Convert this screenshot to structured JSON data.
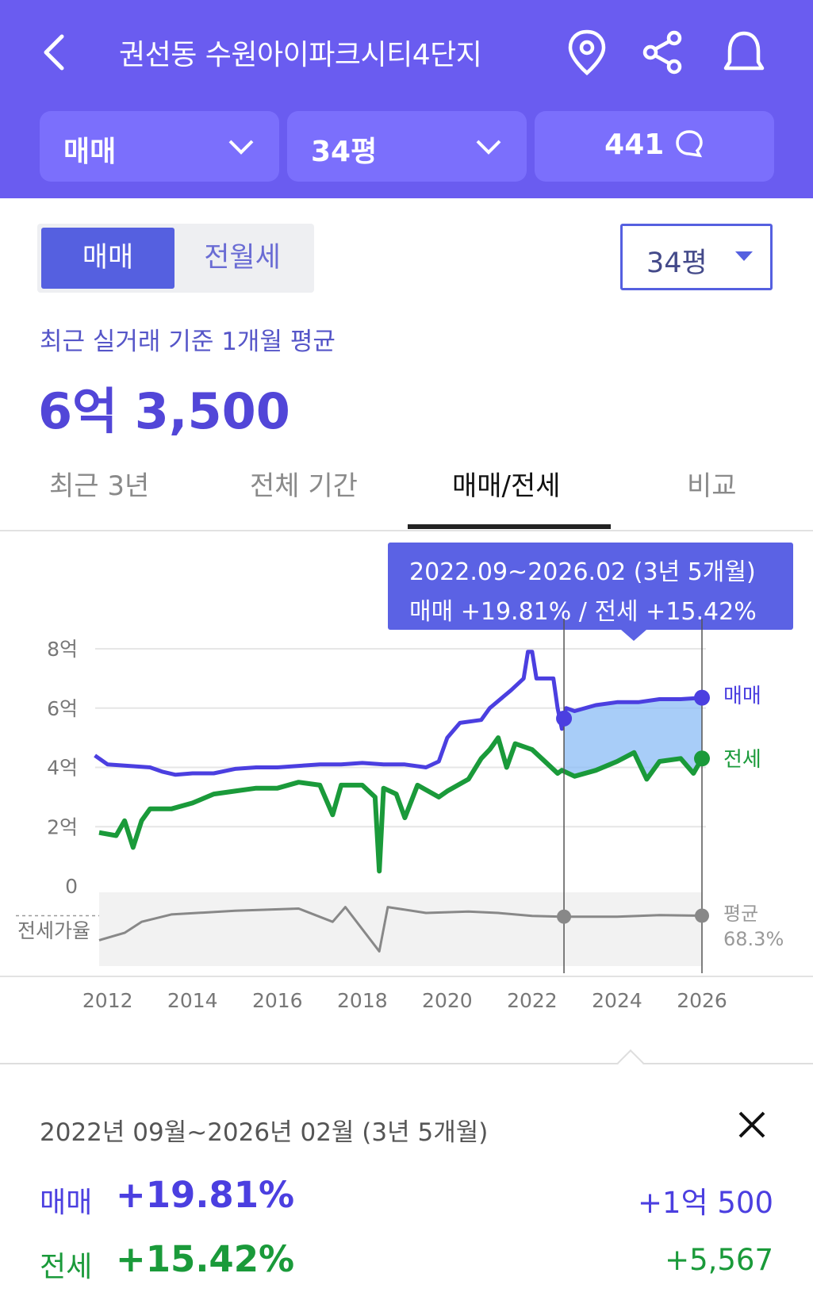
{
  "header": {
    "title": "권선동 수원아이파크시티4단지",
    "icons": [
      "back-icon",
      "location-pin-icon",
      "share-icon",
      "bell-icon"
    ],
    "filters": [
      {
        "label": "매매",
        "has_dropdown": true
      },
      {
        "label": "34평",
        "has_dropdown": true
      },
      {
        "label": "441",
        "icon": "comment-icon"
      }
    ]
  },
  "trade_toggle": {
    "options": [
      "매매",
      "전월세"
    ],
    "selected": "매매"
  },
  "size_select": {
    "value": "34평"
  },
  "summary": {
    "subtitle": "최근 실거래 기준 1개월 평균",
    "price": "6억 3,500"
  },
  "tabs": [
    {
      "label": "최근 3년",
      "active": false
    },
    {
      "label": "전체 기간",
      "active": false
    },
    {
      "label": "매매/전세",
      "active": true
    },
    {
      "label": "비교",
      "active": false
    }
  ],
  "tooltip": {
    "range": "2022.09~2026.02 (3년 5개월)",
    "change": "매매 +19.81%  /  전세 +15.42%"
  },
  "chart_data": {
    "type": "line",
    "x_ticks": [
      "2012",
      "2014",
      "2016",
      "2018",
      "2020",
      "2022",
      "2024",
      "2026"
    ],
    "y_ticks": [
      "0",
      "2억",
      "4억",
      "6억",
      "8억"
    ],
    "ylim": [
      0,
      8
    ],
    "y_unit": "억",
    "series": [
      {
        "name": "매매",
        "color": "#4b3fe0",
        "points": [
          [
            2011.7,
            4.4
          ],
          [
            2012.0,
            4.1
          ],
          [
            2012.5,
            4.05
          ],
          [
            2013.0,
            4.0
          ],
          [
            2013.3,
            3.85
          ],
          [
            2013.6,
            3.75
          ],
          [
            2014.0,
            3.8
          ],
          [
            2014.5,
            3.8
          ],
          [
            2015.0,
            3.95
          ],
          [
            2015.5,
            4.0
          ],
          [
            2016.0,
            4.0
          ],
          [
            2016.5,
            4.05
          ],
          [
            2017.0,
            4.1
          ],
          [
            2017.5,
            4.1
          ],
          [
            2018.0,
            4.15
          ],
          [
            2018.5,
            4.1
          ],
          [
            2019.0,
            4.1
          ],
          [
            2019.5,
            4.0
          ],
          [
            2019.8,
            4.2
          ],
          [
            2020.0,
            5.0
          ],
          [
            2020.3,
            5.5
          ],
          [
            2020.8,
            5.6
          ],
          [
            2021.0,
            6.0
          ],
          [
            2021.5,
            6.6
          ],
          [
            2021.8,
            7.0
          ],
          [
            2021.9,
            7.9
          ],
          [
            2022.0,
            7.9
          ],
          [
            2022.1,
            7.0
          ],
          [
            2022.5,
            7.0
          ],
          [
            2022.6,
            6.0
          ],
          [
            2022.7,
            5.3
          ],
          [
            2022.8,
            6.0
          ],
          [
            2023.0,
            5.9
          ],
          [
            2023.5,
            6.1
          ],
          [
            2024.0,
            6.2
          ],
          [
            2024.5,
            6.2
          ],
          [
            2025.0,
            6.3
          ],
          [
            2025.5,
            6.3
          ],
          [
            2026.0,
            6.35
          ]
        ]
      },
      {
        "name": "전세",
        "color": "#1a9a3a",
        "points": [
          [
            2011.8,
            1.8
          ],
          [
            2012.2,
            1.7
          ],
          [
            2012.4,
            2.2
          ],
          [
            2012.6,
            1.3
          ],
          [
            2012.8,
            2.2
          ],
          [
            2013.0,
            2.6
          ],
          [
            2013.5,
            2.6
          ],
          [
            2014.0,
            2.8
          ],
          [
            2014.5,
            3.1
          ],
          [
            2015.0,
            3.2
          ],
          [
            2015.5,
            3.3
          ],
          [
            2016.0,
            3.3
          ],
          [
            2016.5,
            3.5
          ],
          [
            2017.0,
            3.4
          ],
          [
            2017.3,
            2.4
          ],
          [
            2017.5,
            3.4
          ],
          [
            2018.0,
            3.4
          ],
          [
            2018.3,
            3.0
          ],
          [
            2018.4,
            0.5
          ],
          [
            2018.5,
            3.3
          ],
          [
            2018.8,
            3.1
          ],
          [
            2019.0,
            2.3
          ],
          [
            2019.3,
            3.4
          ],
          [
            2019.8,
            3.0
          ],
          [
            2020.0,
            3.2
          ],
          [
            2020.5,
            3.6
          ],
          [
            2020.8,
            4.3
          ],
          [
            2021.0,
            4.6
          ],
          [
            2021.2,
            5.0
          ],
          [
            2021.4,
            4.0
          ],
          [
            2021.6,
            4.8
          ],
          [
            2022.0,
            4.6
          ],
          [
            2022.3,
            4.2
          ],
          [
            2022.6,
            3.8
          ],
          [
            2022.7,
            3.9
          ],
          [
            2023.0,
            3.7
          ],
          [
            2023.5,
            3.9
          ],
          [
            2024.0,
            4.2
          ],
          [
            2024.4,
            4.5
          ],
          [
            2024.7,
            3.6
          ],
          [
            2025.0,
            4.2
          ],
          [
            2025.5,
            4.3
          ],
          [
            2025.8,
            3.8
          ],
          [
            2026.0,
            4.3
          ]
        ]
      },
      {
        "name": "전세가율",
        "color": "#888888",
        "points": [
          [
            2011.8,
            0.35
          ],
          [
            2012.4,
            0.45
          ],
          [
            2012.8,
            0.6
          ],
          [
            2013.5,
            0.7
          ],
          [
            2015.0,
            0.75
          ],
          [
            2016.5,
            0.78
          ],
          [
            2017.3,
            0.6
          ],
          [
            2017.6,
            0.8
          ],
          [
            2018.4,
            0.2
          ],
          [
            2018.6,
            0.8
          ],
          [
            2019.5,
            0.72
          ],
          [
            2020.5,
            0.74
          ],
          [
            2021.2,
            0.72
          ],
          [
            2022.0,
            0.68
          ],
          [
            2022.7,
            0.67
          ],
          [
            2024.0,
            0.67
          ],
          [
            2025.0,
            0.69
          ],
          [
            2026.0,
            0.683
          ]
        ]
      }
    ],
    "highlight_range": [
      "2022.09",
      "2026.02"
    ],
    "end_labels": [
      "매매",
      "전세"
    ],
    "ratio_label": "전세가율",
    "ratio_avg_label": "평균",
    "ratio_avg_value": "68.3%"
  },
  "detail": {
    "period": "2022년 09월~2026년 02월 (3년 5개월)",
    "rows": [
      {
        "label": "매매",
        "pct": "+19.81%",
        "amount": "+1억 500",
        "color": "#4b3fe0"
      },
      {
        "label": "전세",
        "pct": "+15.42%",
        "amount": "+5,567",
        "color": "#1a9a3a"
      }
    ]
  }
}
